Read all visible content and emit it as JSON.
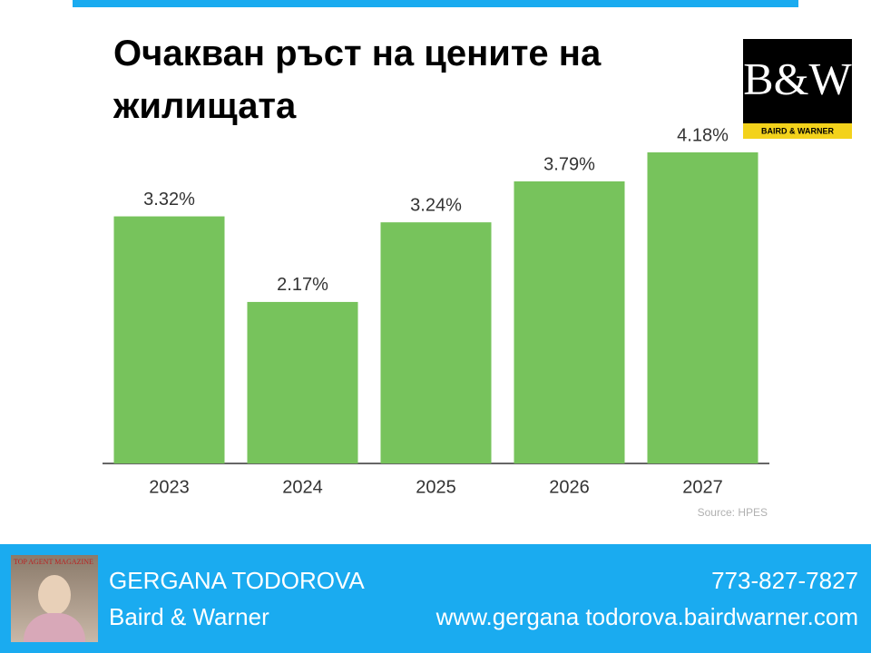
{
  "chart_data": {
    "type": "bar",
    "title": "Очакван ръст на цените на жилищата",
    "categories": [
      "2023",
      "2024",
      "2025",
      "2026",
      "2027"
    ],
    "values": [
      3.32,
      2.17,
      3.24,
      3.79,
      4.18
    ],
    "value_labels": [
      "3.32%",
      "2.17%",
      "3.24%",
      "3.79%",
      "4.18%"
    ],
    "color": "#77c35c",
    "source": "Source: HPES"
  },
  "logo": {
    "monogram": "B&W",
    "name": "BAIRD & WARNER"
  },
  "footer": {
    "photo_caption": "TOP AGENT MAGAZINE",
    "agent_name": "GERGANA TODOROVA",
    "company": "Baird & Warner",
    "phone": "773-827-7827",
    "website": "www.gergana todorova.bairdwarner.com"
  }
}
